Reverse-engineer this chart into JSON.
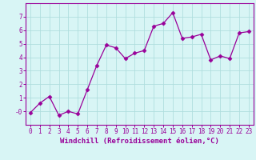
{
  "x": [
    0,
    1,
    2,
    3,
    4,
    5,
    6,
    7,
    8,
    9,
    10,
    11,
    12,
    13,
    14,
    15,
    16,
    17,
    18,
    19,
    20,
    21,
    22,
    23
  ],
  "y": [
    -0.1,
    0.6,
    1.1,
    -0.3,
    0.0,
    -0.2,
    1.6,
    3.4,
    4.9,
    4.7,
    3.9,
    4.3,
    4.5,
    6.3,
    6.5,
    7.3,
    5.4,
    5.5,
    5.7,
    3.8,
    4.1,
    3.9,
    5.8,
    5.9
  ],
  "line_color": "#990099",
  "marker": "D",
  "marker_size": 2.5,
  "bg_color": "#d8f5f5",
  "grid_color": "#b0dede",
  "xlabel": "Windchill (Refroidissement éolien,°C)",
  "xlim": [
    -0.5,
    23.5
  ],
  "ylim": [
    -1.0,
    8.0
  ],
  "yticks": [
    0,
    1,
    2,
    3,
    4,
    5,
    6,
    7
  ],
  "ytick_labels": [
    "-0",
    "1",
    "2",
    "3",
    "4",
    "5",
    "6",
    "7"
  ],
  "xticks": [
    0,
    1,
    2,
    3,
    4,
    5,
    6,
    7,
    8,
    9,
    10,
    11,
    12,
    13,
    14,
    15,
    16,
    17,
    18,
    19,
    20,
    21,
    22,
    23
  ],
  "tick_fontsize": 5.5,
  "xlabel_fontsize": 6.5,
  "axis_color": "#990099",
  "label_color": "#990099"
}
